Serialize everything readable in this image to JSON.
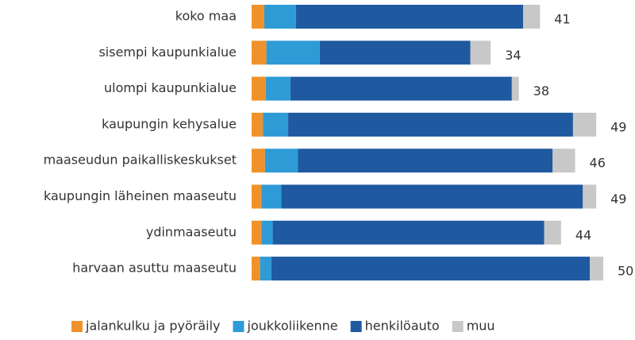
{
  "chart_data": {
    "type": "stacked-bar-horizontal",
    "categories": [
      "koko maa",
      "sisempi kaupunkialue",
      "ulompi kaupunkialue",
      "kaupungin kehysalue",
      "maaseudun paikalliskeskukset",
      "kaupungin läheinen maaseutu",
      "ydinmaaseutu",
      "harvaan asuttu maaseutu"
    ],
    "series": [
      {
        "name": "jalankulku ja pyöräily",
        "color": "#f0922b",
        "values": [
          1.8,
          2.1,
          2.0,
          1.6,
          1.9,
          1.4,
          1.4,
          1.2
        ]
      },
      {
        "name": "joukkoliikenne",
        "color": "#2e9bd6",
        "values": [
          4.5,
          7.6,
          3.5,
          3.6,
          4.7,
          2.8,
          1.6,
          1.6
        ]
      },
      {
        "name": "henkilöauto",
        "color": "#1f5aa0",
        "values": [
          32.3,
          21.4,
          31.5,
          40.5,
          36.2,
          42.9,
          38.6,
          45.3
        ]
      },
      {
        "name": "muu",
        "color": "#c8c8c8",
        "values": [
          2.4,
          2.9,
          1.0,
          3.3,
          3.2,
          1.9,
          2.4,
          1.9
        ]
      }
    ],
    "totals": [
      41,
      34,
      38,
      49,
      46,
      49,
      44,
      50
    ],
    "legend": "bottom"
  }
}
